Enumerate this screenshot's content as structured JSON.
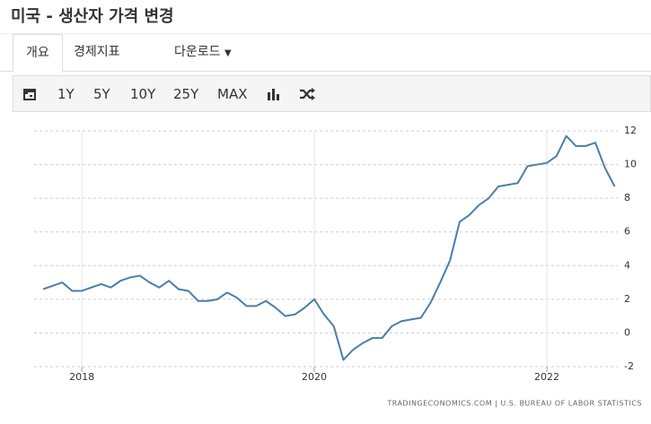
{
  "header": {
    "title": "미국 - 생산자 가격 변경"
  },
  "tabs": [
    "개요",
    "경제지표",
    "다운로드"
  ],
  "toolbar": [
    "1Y",
    "5Y",
    "10Y",
    "25Y",
    "MAX"
  ],
  "chart_data": {
    "type": "line",
    "x": [
      2017.667,
      2017.75,
      2017.833,
      2017.917,
      2018,
      2018.083,
      2018.167,
      2018.25,
      2018.333,
      2018.417,
      2018.5,
      2018.583,
      2018.667,
      2018.75,
      2018.833,
      2018.917,
      2019,
      2019.083,
      2019.167,
      2019.25,
      2019.333,
      2019.417,
      2019.5,
      2019.583,
      2019.667,
      2019.75,
      2019.833,
      2019.917,
      2020,
      2020.083,
      2020.167,
      2020.25,
      2020.333,
      2020.417,
      2020.5,
      2020.583,
      2020.667,
      2020.75,
      2020.833,
      2020.917,
      2021,
      2021.083,
      2021.167,
      2021.25,
      2021.333,
      2021.417,
      2021.5,
      2021.583,
      2021.667,
      2021.75,
      2021.833,
      2021.917,
      2022,
      2022.083,
      2022.167,
      2022.25,
      2022.333,
      2022.417,
      2022.5,
      2022.583
    ],
    "series": [
      {
        "color": "#4a7eab",
        "values": [
          2.6,
          2.8,
          3.0,
          2.5,
          2.5,
          2.7,
          2.9,
          2.7,
          3.1,
          3.3,
          3.4,
          3.0,
          2.7,
          3.1,
          2.6,
          2.5,
          1.9,
          1.9,
          2.0,
          2.4,
          2.1,
          1.6,
          1.6,
          1.9,
          1.5,
          1.0,
          1.1,
          1.5,
          2.0,
          1.1,
          0.4,
          -1.6,
          -1.0,
          -0.6,
          -0.3,
          -0.3,
          0.4,
          0.7,
          0.8,
          0.9,
          1.8,
          3.0,
          4.3,
          6.6,
          7.0,
          7.6,
          8.0,
          8.7,
          8.8,
          8.9,
          9.9,
          10.0,
          10.1,
          10.5,
          11.7,
          11.1,
          11.1,
          11.3,
          9.8,
          8.7
        ]
      }
    ],
    "xlim": [
      2017.59,
      2022.61
    ],
    "xticks": [
      2018,
      2020,
      2022
    ],
    "ylim": [
      -2,
      12
    ],
    "yticks": [
      -2,
      0,
      2,
      4,
      6,
      8,
      10,
      12
    ],
    "grid": true,
    "source": "TRADINGECONOMICS.COM | U.S. BUREAU OF LABOR STATISTICS"
  }
}
